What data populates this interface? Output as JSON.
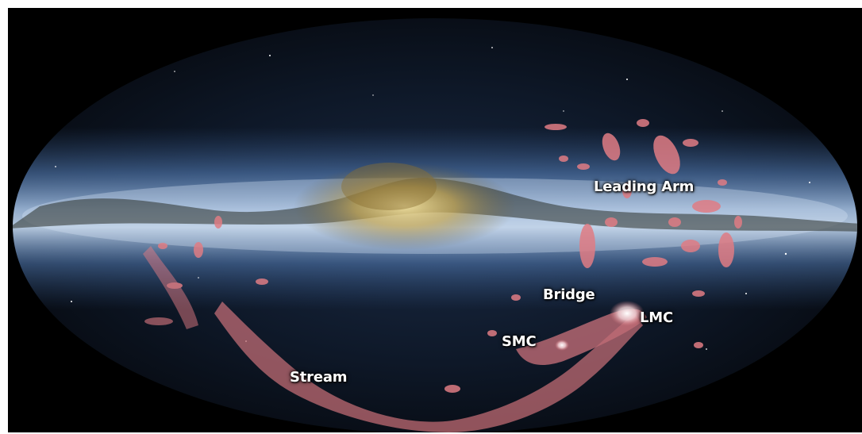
{
  "image": {
    "subject": "all-sky map",
    "colors": {
      "background": "#000000",
      "sky_dark": "#0b1220",
      "milky_way_blue": "#6f9fd8",
      "galactic_core": "#c8a850",
      "gas_stream": "#e07c84"
    }
  },
  "labels": {
    "leading_arm": "Leading Arm",
    "bridge": "Bridge",
    "lmc": "LMC",
    "smc": "SMC",
    "stream": "Stream"
  }
}
